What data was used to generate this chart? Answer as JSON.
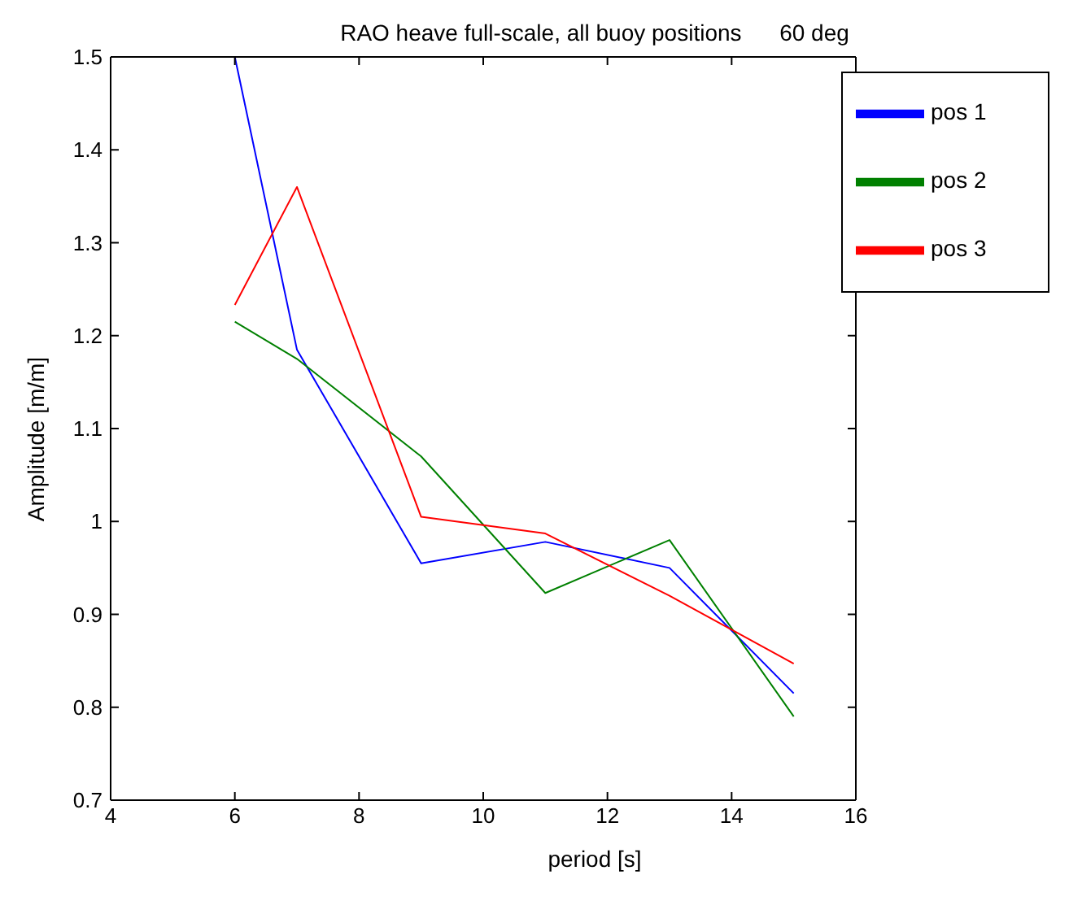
{
  "chart_data": {
    "type": "line",
    "title": "RAO heave full-scale, all buoy positions      60 deg",
    "xlabel": "period [s]",
    "ylabel": "Amplitude [m/m]",
    "x": [
      6,
      7,
      9,
      11,
      13,
      15
    ],
    "series": [
      {
        "name": "pos 1",
        "color": "#0000ff",
        "values": [
          1.5,
          1.185,
          0.955,
          0.978,
          0.95,
          0.815
        ]
      },
      {
        "name": "pos 2",
        "color": "#008000",
        "values": [
          1.215,
          1.175,
          1.07,
          0.923,
          0.98,
          0.79
        ]
      },
      {
        "name": "pos 3",
        "color": "#ff0000",
        "values": [
          1.233,
          1.36,
          1.005,
          0.987,
          0.92,
          0.847
        ]
      }
    ],
    "xlim": [
      4,
      16
    ],
    "xticks": [
      4,
      6,
      8,
      10,
      12,
      14,
      16
    ],
    "ylim": [
      0.7,
      1.5
    ],
    "yticks": [
      0.7,
      0.8,
      0.9,
      1,
      1.1,
      1.2,
      1.3,
      1.4,
      1.5
    ],
    "grid": false,
    "legend": "top right",
    "marker": "none",
    "line_style": "solid"
  }
}
